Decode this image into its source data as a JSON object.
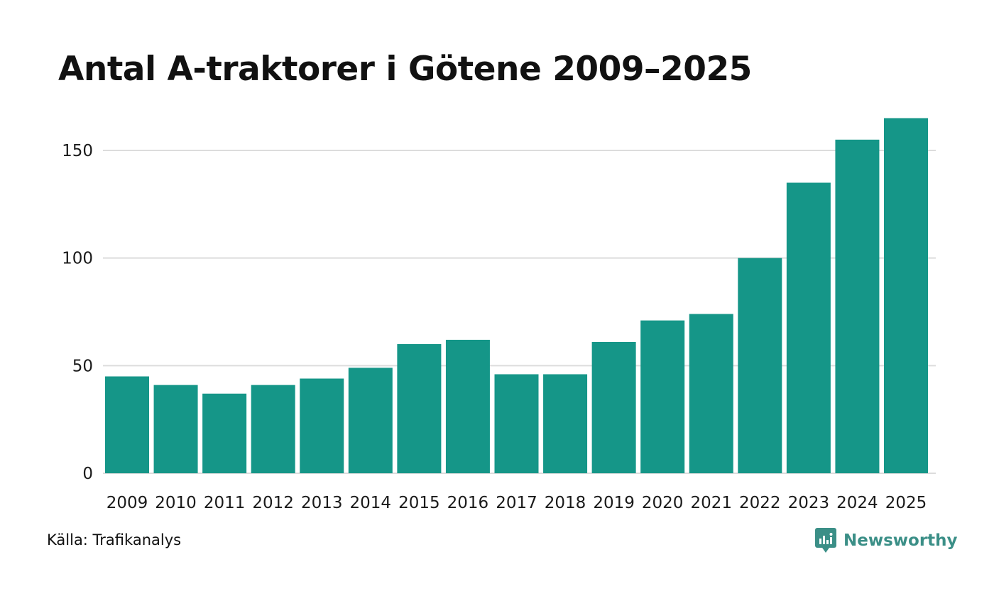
{
  "title": "Antal A-traktorer i Götene 2009–2025",
  "source": "Källa: Trafikanalys",
  "brand": {
    "name": "Newsworthy",
    "icon": "newsworthy-logo-icon",
    "color": "#3b8f87"
  },
  "colors": {
    "bar": "#159688",
    "grid": "#dcdcdc"
  },
  "chart_data": {
    "type": "bar",
    "title": "Antal A-traktorer i Götene 2009–2025",
    "xlabel": "",
    "ylabel": "",
    "categories": [
      "2009",
      "2010",
      "2011",
      "2012",
      "2013",
      "2014",
      "2015",
      "2016",
      "2017",
      "2018",
      "2019",
      "2020",
      "2021",
      "2022",
      "2023",
      "2024",
      "2025"
    ],
    "values": [
      45,
      41,
      37,
      41,
      44,
      49,
      60,
      62,
      46,
      46,
      61,
      71,
      74,
      100,
      135,
      155,
      165
    ],
    "ylim": [
      0,
      165
    ],
    "yticks": [
      0,
      50,
      100,
      150
    ],
    "grid": true,
    "legend": "none"
  }
}
